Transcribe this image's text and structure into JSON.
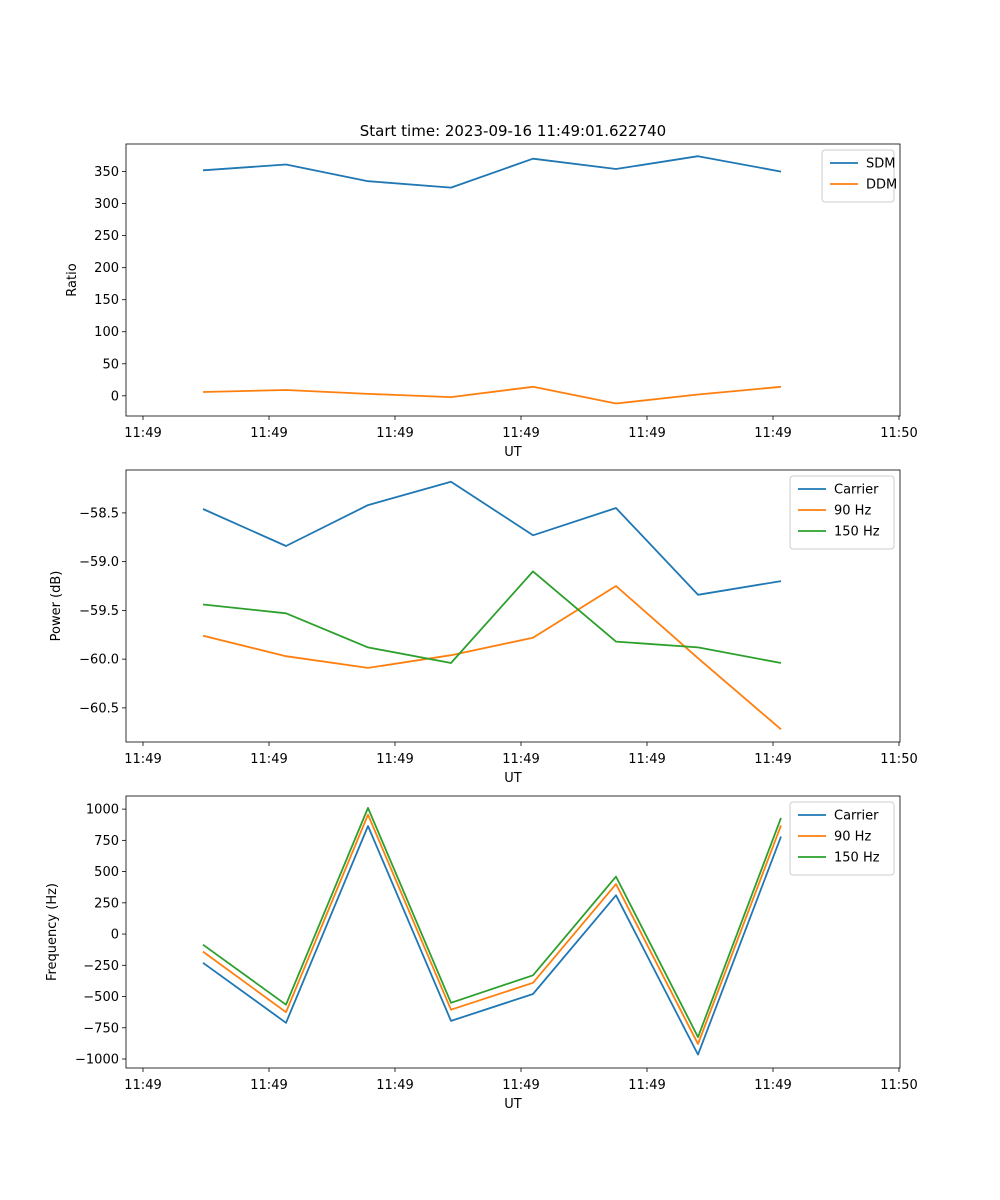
{
  "title": "Start time: 2023-09-16 11:49:01.622740",
  "colors": {
    "blue": "#1f77b4",
    "orange": "#ff7f0e",
    "green": "#2ca02c"
  },
  "chart_data": [
    {
      "type": "line",
      "xlabel": "UT",
      "ylabel": "Ratio",
      "x_tick_labels": [
        "11:49",
        "11:49",
        "11:49",
        "11:49",
        "11:49",
        "11:49",
        "11:50"
      ],
      "y_ticks": [
        0,
        50,
        100,
        150,
        200,
        250,
        300,
        350
      ],
      "y_tick_labels": [
        "0",
        "50",
        "100",
        "150",
        "200",
        "250",
        "300",
        "350"
      ],
      "ylim": [
        -31.5,
        393
      ],
      "legend_position": "upper right",
      "series": [
        {
          "name": "SDM",
          "color": "#1f77b4",
          "values": [
            352,
            361,
            335,
            325,
            370,
            354,
            374,
            350
          ]
        },
        {
          "name": "DDM",
          "color": "#ff7f0e",
          "values": [
            6,
            9,
            3,
            -2,
            14,
            -12,
            2,
            14
          ]
        }
      ]
    },
    {
      "type": "line",
      "xlabel": "UT",
      "ylabel": "Power (dB)",
      "x_tick_labels": [
        "11:49",
        "11:49",
        "11:49",
        "11:49",
        "11:49",
        "11:49",
        "11:50"
      ],
      "y_ticks": [
        -60.5,
        -60.0,
        -59.5,
        -59.0,
        -58.5
      ],
      "y_tick_labels": [
        "−60.5",
        "−60.0",
        "−59.5",
        "−59.0",
        "−58.5"
      ],
      "ylim": [
        -60.85,
        -58.06
      ],
      "legend_position": "upper right",
      "series": [
        {
          "name": "Carrier",
          "color": "#1f77b4",
          "values": [
            -58.46,
            -58.84,
            -58.42,
            -58.18,
            -58.73,
            -58.45,
            -59.34,
            -59.2
          ]
        },
        {
          "name": "90 Hz",
          "color": "#ff7f0e",
          "values": [
            -59.76,
            -59.97,
            -60.09,
            -59.96,
            -59.78,
            -59.25,
            -59.99,
            -60.72
          ]
        },
        {
          "name": "150 Hz",
          "color": "#2ca02c",
          "values": [
            -59.44,
            -59.53,
            -59.88,
            -60.04,
            -59.1,
            -59.82,
            -59.88,
            -60.04
          ]
        }
      ]
    },
    {
      "type": "line",
      "xlabel": "UT",
      "ylabel": "Frequency (Hz)",
      "x_tick_labels": [
        "11:49",
        "11:49",
        "11:49",
        "11:49",
        "11:49",
        "11:49",
        "11:50"
      ],
      "y_ticks": [
        -1000,
        -750,
        -500,
        -250,
        0,
        250,
        500,
        750,
        1000
      ],
      "y_tick_labels": [
        "−1000",
        "−750",
        "−500",
        "−250",
        "0",
        "250",
        "500",
        "750",
        "1000"
      ],
      "ylim": [
        -1072,
        1105
      ],
      "legend_position": "upper right",
      "series": [
        {
          "name": "Carrier",
          "color": "#1f77b4",
          "values": [
            -230,
            -710,
            865,
            -695,
            -480,
            310,
            -965,
            780
          ]
        },
        {
          "name": "90 Hz",
          "color": "#ff7f0e",
          "values": [
            -140,
            -625,
            955,
            -605,
            -390,
            400,
            -880,
            870
          ]
        },
        {
          "name": "150 Hz",
          "color": "#2ca02c",
          "values": [
            -85,
            -565,
            1010,
            -550,
            -330,
            460,
            -825,
            930
          ]
        }
      ]
    }
  ]
}
